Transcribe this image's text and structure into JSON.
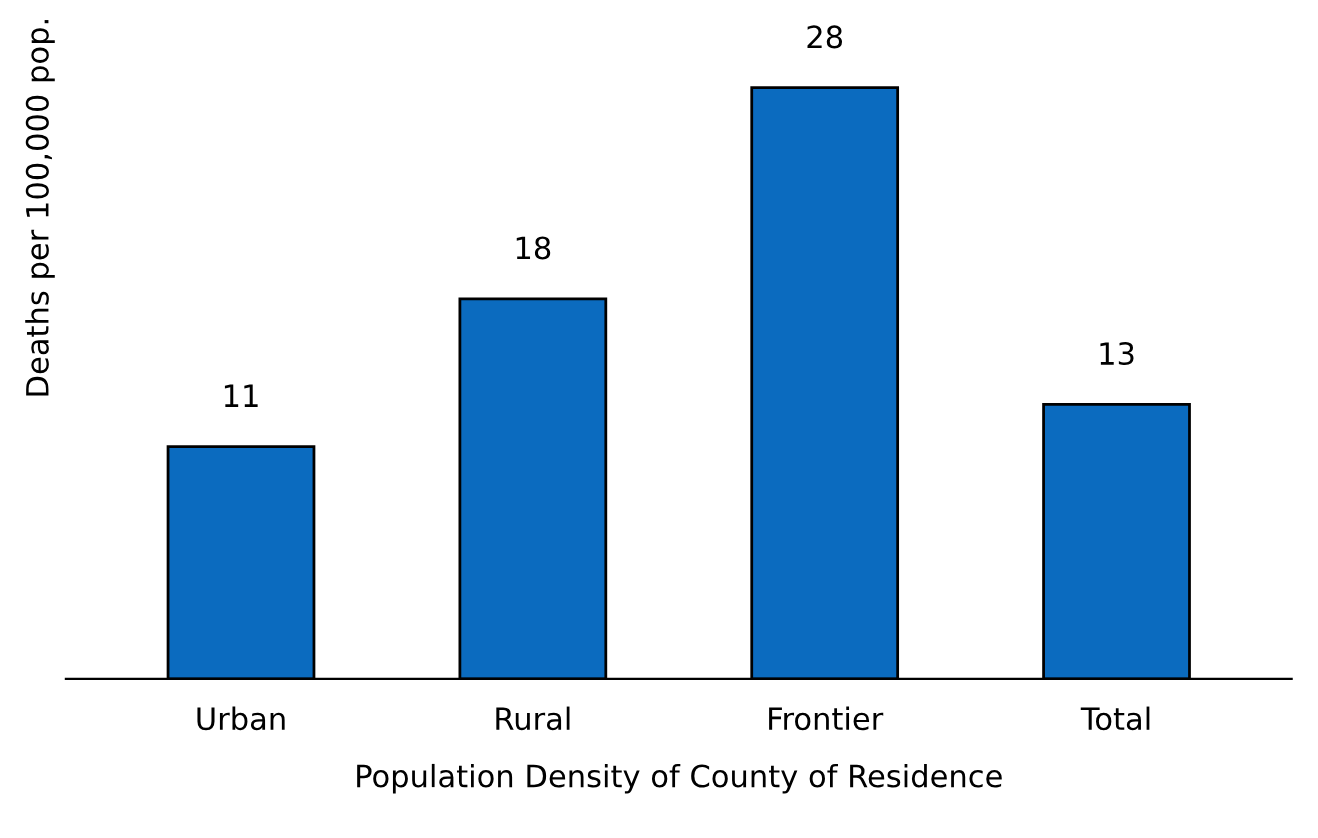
{
  "chart_data": {
    "type": "bar",
    "xlabel": "Population Density of County of Residence",
    "ylabel": "Deaths per 100,000 pop.",
    "categories": [
      "Urban",
      "Rural",
      "Frontier",
      "Total"
    ],
    "values": [
      11,
      18,
      28,
      13
    ],
    "color": "#0b6bbf",
    "data_labels": true,
    "grid": false
  }
}
